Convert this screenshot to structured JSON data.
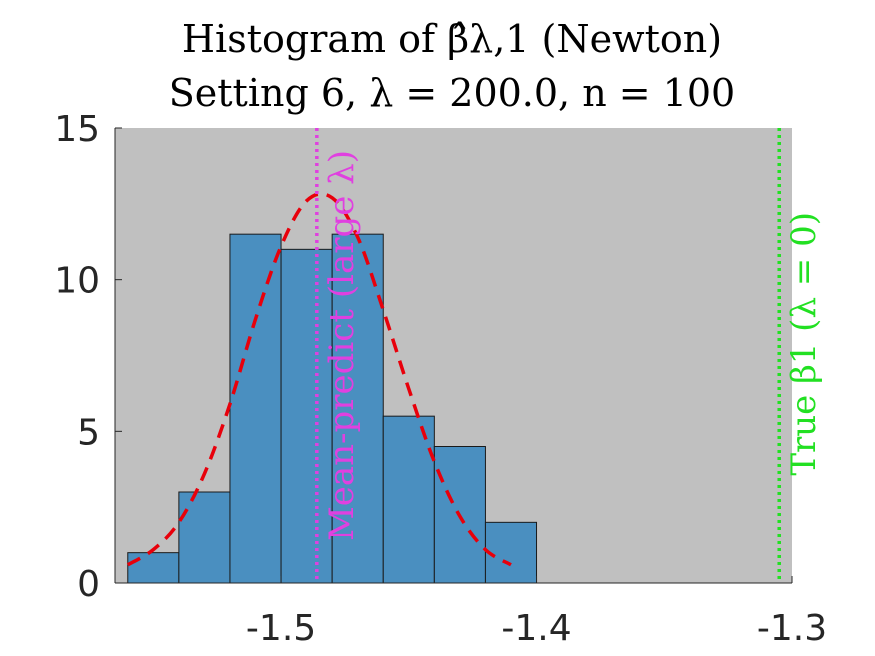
{
  "chart_data": {
    "type": "bar",
    "title_line1": "Histogram of β̂λ,1 (Newton)",
    "title_line2": "Setting 6, λ = 200.0, n = 100",
    "xlim": [
      -1.565,
      -1.3
    ],
    "ylim": [
      0,
      15
    ],
    "xticks": [
      "-1.5",
      "-1.4",
      "-1.3"
    ],
    "xtick_values": [
      -1.5,
      -1.4,
      -1.3
    ],
    "yticks": [
      "0",
      "5",
      "10",
      "15"
    ],
    "ytick_values": [
      0,
      5,
      10,
      15
    ],
    "bin_edges": [
      -1.56,
      -1.54,
      -1.52,
      -1.5,
      -1.48,
      -1.46,
      -1.44,
      -1.42,
      -1.4
    ],
    "values": [
      1.0,
      3.0,
      11.5,
      11.0,
      11.5,
      5.5,
      4.5,
      2.0
    ],
    "density_curve": {
      "x": [
        -1.56,
        -1.55,
        -1.54,
        -1.53,
        -1.52,
        -1.51,
        -1.5,
        -1.49,
        -1.48,
        -1.47,
        -1.46,
        -1.45,
        -1.44,
        -1.43,
        -1.42,
        -1.41
      ],
      "y": [
        0.6,
        1.1,
        2.0,
        3.6,
        5.9,
        8.7,
        11.1,
        12.6,
        12.7,
        11.4,
        9.0,
        6.4,
        4.0,
        2.2,
        1.1,
        0.6
      ]
    },
    "vlines": [
      {
        "x": -1.486,
        "label": "Mean-predict (large λ)"
      },
      {
        "x": -1.305,
        "label": "True β1 (λ = 0)"
      }
    ],
    "colors": {
      "bar_fill": "#4a8fc0",
      "bar_edge": "#1a1a1a",
      "axes_bg": "#c0c0c0",
      "curve": "#e8000b",
      "mean_line": "#e040e0",
      "true_line": "#22e022"
    }
  }
}
